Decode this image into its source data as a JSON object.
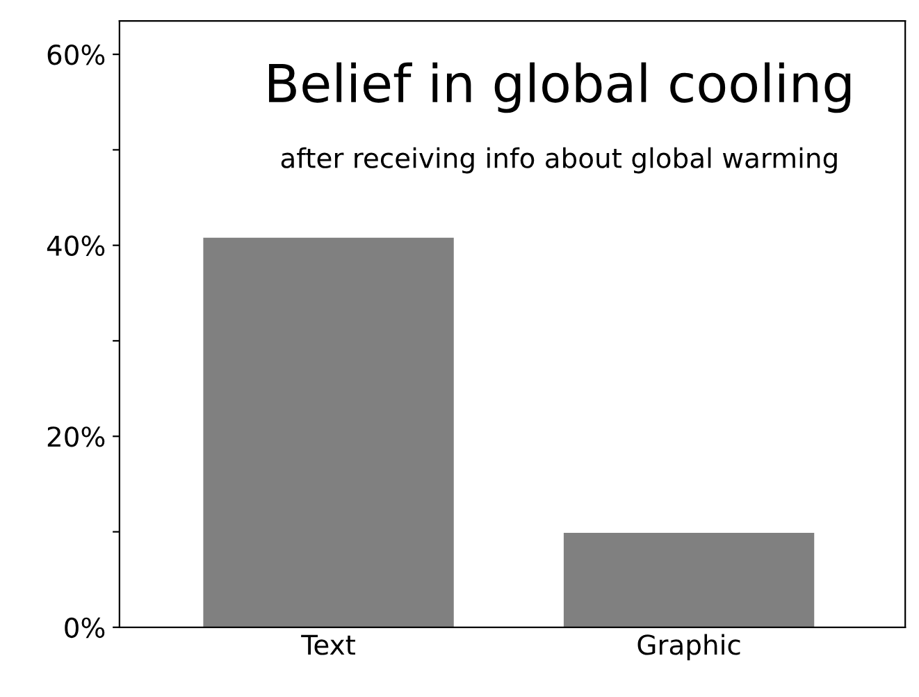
{
  "chart_data": {
    "type": "bar",
    "title": "Belief in global cooling",
    "subtitle": "after receiving info about global warming",
    "categories": [
      "Text",
      "Graphic"
    ],
    "values": [
      40.8,
      9.9
    ],
    "color": "#808080",
    "ylim": [
      0,
      63.5
    ],
    "yticks": [
      {
        "value": 0,
        "label": "0%"
      },
      {
        "value": 10,
        "label": null
      },
      {
        "value": 20,
        "label": "20%"
      },
      {
        "value": 30,
        "label": null
      },
      {
        "value": 40,
        "label": "40%"
      },
      {
        "value": 50,
        "label": null
      },
      {
        "value": 60,
        "label": "60%"
      }
    ],
    "grid": false
  }
}
